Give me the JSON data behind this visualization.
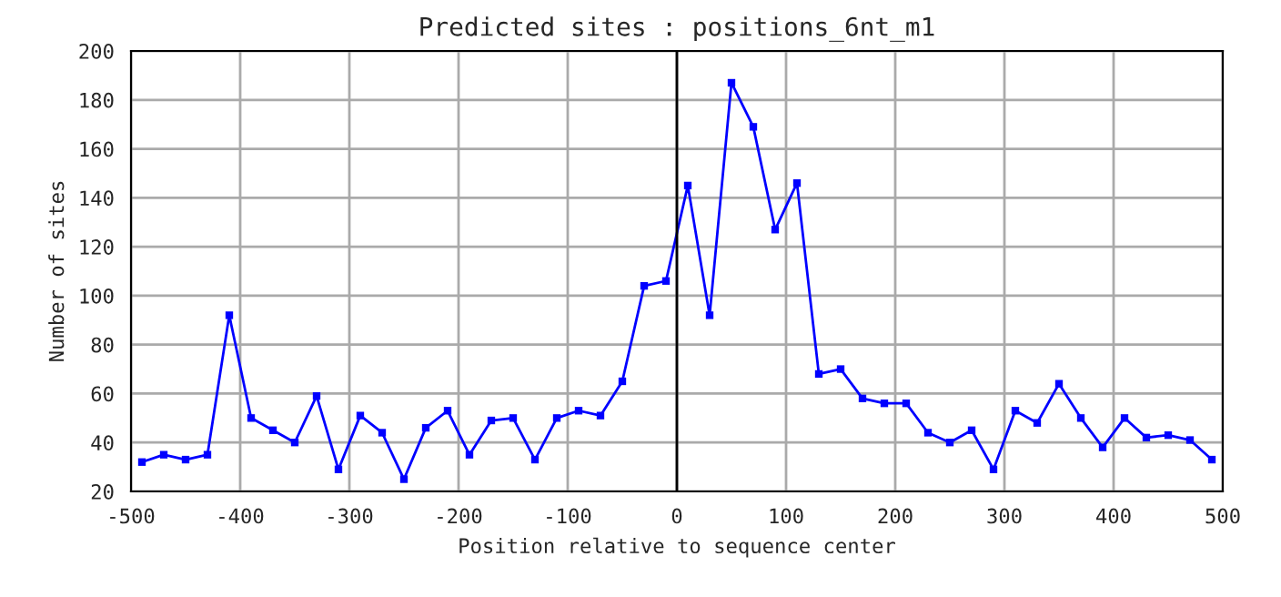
{
  "chart_data": {
    "type": "line",
    "title": "Predicted sites : positions_6nt_m1",
    "xlabel": "Position relative to sequence center",
    "ylabel": "Number of sites",
    "x": [
      -490,
      -470,
      -450,
      -430,
      -410,
      -390,
      -370,
      -350,
      -330,
      -310,
      -290,
      -270,
      -250,
      -230,
      -210,
      -190,
      -170,
      -150,
      -130,
      -110,
      -90,
      -70,
      -50,
      -30,
      -10,
      10,
      30,
      50,
      70,
      90,
      110,
      130,
      150,
      170,
      190,
      210,
      230,
      250,
      270,
      290,
      310,
      330,
      350,
      370,
      390,
      410,
      430,
      450,
      470,
      490
    ],
    "series": [
      {
        "color": "#0000ff",
        "values": [
          32,
          35,
          33,
          35,
          92,
          50,
          45,
          40,
          59,
          29,
          51,
          44,
          25,
          46,
          53,
          35,
          49,
          50,
          33,
          50,
          53,
          51,
          65,
          104,
          106,
          145,
          92,
          187,
          169,
          127,
          146,
          68,
          70,
          58,
          56,
          56,
          44,
          40,
          45,
          29,
          53,
          48,
          64,
          50,
          38,
          50,
          42,
          43,
          41,
          33
        ]
      }
    ],
    "xlim": [
      -500,
      500
    ],
    "xticks": [
      -500,
      -400,
      -300,
      -200,
      -100,
      0,
      100,
      200,
      300,
      400,
      500
    ],
    "ylim": [
      20,
      200
    ],
    "yticks": [
      20,
      40,
      60,
      80,
      100,
      120,
      140,
      160,
      180,
      200
    ],
    "grid": true,
    "marker": "square",
    "line_style": "solid",
    "legend": false,
    "ref_lines": [
      {
        "axis": "x",
        "value": 0,
        "color": "#000000"
      }
    ]
  }
}
